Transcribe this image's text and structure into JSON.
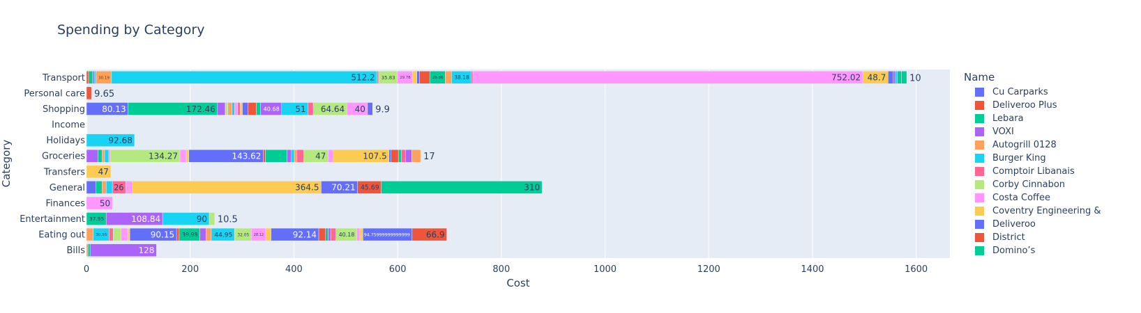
{
  "chart_data": {
    "type": "bar",
    "orientation": "horizontal",
    "barmode": "stack",
    "title": "Spending by Category",
    "xlabel": "Cost",
    "ylabel": "Category",
    "xlim": [
      0,
      1665
    ],
    "x_ticks": [
      "0",
      "200",
      "400",
      "600",
      "800",
      "1000",
      "1200",
      "1400",
      "1600"
    ],
    "grid": true,
    "legend_title": "Name",
    "legend_position": "right",
    "categories": [
      "Transport",
      "Personal care",
      "Shopping",
      "Income",
      "Holidays",
      "Groceries",
      "Transfers",
      "General",
      "Finances",
      "Entertainment",
      "Eating out",
      "Bills"
    ],
    "palette": [
      "#636efa",
      "#EF553B",
      "#00cc96",
      "#ab63fa",
      "#FFA15A",
      "#19d3f3",
      "#FF6692",
      "#B6E880",
      "#FF97FF",
      "#FECB52"
    ],
    "legend": [
      {
        "name": "Cu Carparks",
        "color": "#636efa"
      },
      {
        "name": "Deliveroo Plus",
        "color": "#EF553B"
      },
      {
        "name": "Lebara",
        "color": "#00cc96"
      },
      {
        "name": "VOXI",
        "color": "#ab63fa"
      },
      {
        "name": "Autogrill 0128",
        "color": "#FFA15A"
      },
      {
        "name": "Burger King",
        "color": "#19d3f3"
      },
      {
        "name": "Comptoir Libanais",
        "color": "#FF6692"
      },
      {
        "name": "Corby Cinnabon",
        "color": "#B6E880"
      },
      {
        "name": "Costa Coffee",
        "color": "#FF97FF"
      },
      {
        "name": "Coventry Engineering &",
        "color": "#FECB52"
      },
      {
        "name": "Deliveroo",
        "color": "#636efa"
      },
      {
        "name": "District",
        "color": "#EF553B"
      },
      {
        "name": "Domino’s",
        "color": "#00cc96"
      }
    ],
    "rows": [
      {
        "category": "Transport",
        "segments": [
          {
            "v": 4,
            "c": 1
          },
          {
            "v": 8,
            "c": 2
          },
          {
            "v": 3,
            "c": 3
          },
          {
            "v": 3,
            "c": 5
          },
          {
            "v": 30.19,
            "c": 4,
            "label": "30.19"
          },
          {
            "v": 512.2,
            "c": 5,
            "label": "512.2"
          },
          {
            "v": 3,
            "c": 6
          },
          {
            "v": 35.83,
            "c": 7,
            "label": "35.83"
          },
          {
            "v": 29.78,
            "c": 8,
            "label": "29.78"
          },
          {
            "v": 8,
            "c": 9
          },
          {
            "v": 5,
            "c": 0
          },
          {
            "v": 20,
            "c": 1
          },
          {
            "v": 29.86,
            "c": 2,
            "label": "29.86"
          },
          {
            "v": 12,
            "c": 4
          },
          {
            "v": 38.18,
            "c": 5,
            "label": "38.18"
          },
          {
            "v": 3,
            "c": 6
          },
          {
            "v": 752.02,
            "c": 8,
            "label": "752.02"
          },
          {
            "v": 48.7,
            "c": 9,
            "label": "48.7"
          },
          {
            "v": 10,
            "c": 0
          },
          {
            "v": 4,
            "c": 3
          },
          {
            "v": 4,
            "c": 5
          },
          {
            "v": 8,
            "c": 2
          },
          {
            "v": 10,
            "c": 2,
            "outside": "10"
          }
        ]
      },
      {
        "category": "Personal care",
        "segments": [
          {
            "v": 9.65,
            "c": 1,
            "outside": "9.65"
          }
        ]
      },
      {
        "category": "Shopping",
        "segments": [
          {
            "v": 80.13,
            "c": 0,
            "label": "80.13"
          },
          {
            "v": 172.46,
            "c": 2,
            "label": "172.46"
          },
          {
            "v": 15,
            "c": 3
          },
          {
            "v": 5,
            "c": 7
          },
          {
            "v": 8,
            "c": 4
          },
          {
            "v": 5,
            "c": 5
          },
          {
            "v": 6,
            "c": 8
          },
          {
            "v": 5,
            "c": 6
          },
          {
            "v": 4,
            "c": 9
          },
          {
            "v": 11,
            "c": 0
          },
          {
            "v": 16,
            "c": 1
          },
          {
            "v": 8,
            "c": 2
          },
          {
            "v": 40.68,
            "c": 3,
            "label": "40.68"
          },
          {
            "v": 51,
            "c": 5,
            "label": "51"
          },
          {
            "v": 10,
            "c": 6
          },
          {
            "v": 64.64,
            "c": 7,
            "label": "64.64"
          },
          {
            "v": 40,
            "c": 8,
            "label": "40"
          },
          {
            "v": 9.9,
            "c": 0,
            "outside": "9.9"
          }
        ]
      },
      {
        "category": "Income",
        "segments": []
      },
      {
        "category": "Holidays",
        "segments": [
          {
            "v": 92.68,
            "c": 5,
            "label": "92.68"
          }
        ]
      },
      {
        "category": "Groceries",
        "segments": [
          {
            "v": 22,
            "c": 3
          },
          {
            "v": 8,
            "c": 2
          },
          {
            "v": 5,
            "c": 4
          },
          {
            "v": 8,
            "c": 5
          },
          {
            "v": 3,
            "c": 8
          },
          {
            "v": 134.27,
            "c": 7,
            "label": "134.27"
          },
          {
            "v": 12,
            "c": 8
          },
          {
            "v": 5,
            "c": 9
          },
          {
            "v": 143.62,
            "c": 0,
            "label": "143.62"
          },
          {
            "v": 4,
            "c": 1
          },
          {
            "v": 42,
            "c": 2
          },
          {
            "v": 8,
            "c": 3
          },
          {
            "v": 6,
            "c": 5
          },
          {
            "v": 5,
            "c": 4
          },
          {
            "v": 13,
            "c": 6
          },
          {
            "v": 47,
            "c": 7,
            "label": "47"
          },
          {
            "v": 10,
            "c": 8
          },
          {
            "v": 107.5,
            "c": 9,
            "label": "107.5"
          },
          {
            "v": 4,
            "c": 0
          },
          {
            "v": 14,
            "c": 1
          },
          {
            "v": 6,
            "c": 2
          },
          {
            "v": 8,
            "c": 6
          },
          {
            "v": 12,
            "c": 3
          },
          {
            "v": 17,
            "c": 4,
            "outside": "17"
          }
        ]
      },
      {
        "category": "Transfers",
        "segments": [
          {
            "v": 47,
            "c": 9,
            "label": "47"
          }
        ]
      },
      {
        "category": "General",
        "segments": [
          {
            "v": 18,
            "c": 0
          },
          {
            "v": 12,
            "c": 2
          },
          {
            "v": 8,
            "c": 4
          },
          {
            "v": 12,
            "c": 5
          },
          {
            "v": 26,
            "c": 6,
            "label": "26"
          },
          {
            "v": 12,
            "c": 8
          },
          {
            "v": 364.5,
            "c": 9,
            "label": "364.5"
          },
          {
            "v": 70.21,
            "c": 0,
            "label": "70.21"
          },
          {
            "v": 45.69,
            "c": 1,
            "label": "45.69"
          },
          {
            "v": 310,
            "c": 2,
            "label": "310"
          }
        ]
      },
      {
        "category": "Finances",
        "segments": [
          {
            "v": 50,
            "c": 8,
            "label": "50"
          }
        ]
      },
      {
        "category": "Entertainment",
        "segments": [
          {
            "v": 37.95,
            "c": 2,
            "label": "37.95"
          },
          {
            "v": 108.84,
            "c": 3,
            "label": "108.84"
          },
          {
            "v": 90,
            "c": 5,
            "label": "90"
          },
          {
            "v": 10.5,
            "c": 7,
            "outside": "10.5"
          }
        ]
      },
      {
        "category": "Eating out",
        "segments": [
          {
            "v": 13,
            "c": 4
          },
          {
            "v": 30.55,
            "c": 5,
            "label": "30.55"
          },
          {
            "v": 8,
            "c": 6
          },
          {
            "v": 15,
            "c": 7
          },
          {
            "v": 13,
            "c": 8
          },
          {
            "v": 4,
            "c": 9
          },
          {
            "v": 90.15,
            "c": 0,
            "label": "90.15"
          },
          {
            "v": 5,
            "c": 1
          },
          {
            "v": 39.98,
            "c": 2,
            "label": "39.98"
          },
          {
            "v": 12,
            "c": 3
          },
          {
            "v": 10,
            "c": 4
          },
          {
            "v": 44.95,
            "c": 5,
            "label": "44.95"
          },
          {
            "v": 32.05,
            "c": 7,
            "label": "32.05"
          },
          {
            "v": 28.12,
            "c": 8,
            "label": "28.12"
          },
          {
            "v": 10,
            "c": 9
          },
          {
            "v": 92.14,
            "c": 0,
            "label": "92.14"
          },
          {
            "v": 13,
            "c": 1
          },
          {
            "v": 5,
            "c": 2
          },
          {
            "v": 5,
            "c": 3
          },
          {
            "v": 10,
            "c": 6
          },
          {
            "v": 40.18,
            "c": 7,
            "label": "40.18"
          },
          {
            "v": 6,
            "c": 8
          },
          {
            "v": 6,
            "c": 9
          },
          {
            "v": 94.75999999999999,
            "c": 0,
            "label": "94.75999999999999"
          },
          {
            "v": 66.9,
            "c": 1,
            "label": "66.9"
          }
        ]
      },
      {
        "category": "Bills",
        "segments": [
          {
            "v": 3,
            "c": 4
          },
          {
            "v": 4,
            "c": 2
          },
          {
            "v": 128,
            "c": 3,
            "label": "128"
          }
        ]
      }
    ]
  }
}
